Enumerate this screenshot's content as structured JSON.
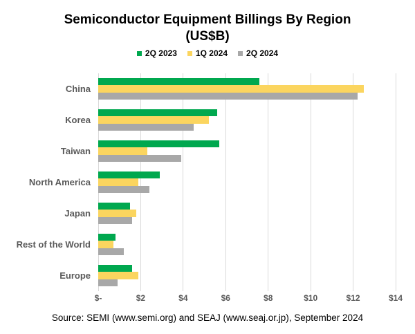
{
  "title": {
    "line1": "Semiconductor Equipment Billings By Region",
    "line2": "(US$B)"
  },
  "source_note": "Source: SEMI (www.semi.org) and SEAJ (www.seaj.or.jp), September 2024",
  "colors": {
    "series_green": "#00A84F",
    "series_yellow": "#FBD55F",
    "series_gray": "#A8A8A8",
    "gridline": "#D9D9D9",
    "axis_text": "#595959",
    "title_text": "#000000"
  },
  "chart_data": {
    "type": "bar",
    "orientation": "horizontal",
    "title": "Semiconductor Equipment Billings By Region (US$B)",
    "categories": [
      "China",
      "Korea",
      "Taiwan",
      "North America",
      "Japan",
      "Rest of the World",
      "Europe"
    ],
    "series": [
      {
        "name": "2Q 2023",
        "color": "#00A84F",
        "values": [
          7.6,
          5.6,
          5.7,
          2.9,
          1.5,
          0.8,
          1.6
        ]
      },
      {
        "name": "1Q 2024",
        "color": "#FBD55F",
        "values": [
          12.5,
          5.2,
          2.3,
          1.9,
          1.8,
          0.7,
          1.9
        ]
      },
      {
        "name": "2Q 2024",
        "color": "#A8A8A8",
        "values": [
          12.2,
          4.5,
          3.9,
          2.4,
          1.6,
          1.2,
          0.9
        ]
      }
    ],
    "xlim": [
      0,
      14
    ],
    "x_ticks": [
      "$-",
      "$2",
      "$4",
      "$6",
      "$8",
      "$10",
      "$12",
      "$14"
    ],
    "x_tick_values": [
      0,
      2,
      4,
      6,
      8,
      10,
      12,
      14
    ],
    "grid": "vertical-only",
    "legend_position": "top-center",
    "xlabel": "",
    "ylabel": ""
  }
}
